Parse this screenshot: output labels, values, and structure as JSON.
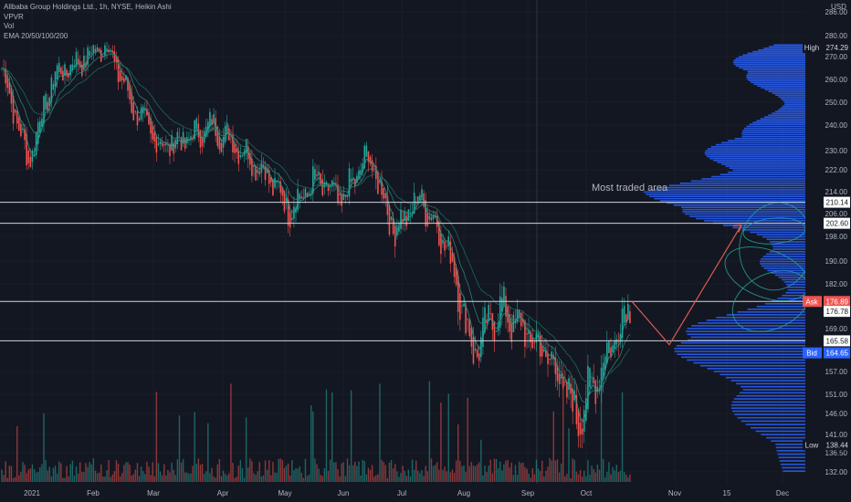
{
  "header": {
    "symbol_line": "Alibaba Group Holdings Ltd., 1h, NYSE, Heikin Ashi",
    "indicators": [
      "VPVR",
      "Vol",
      "EMA 20/50/100/200"
    ]
  },
  "colors": {
    "background": "#131722",
    "grid": "#2a2e39",
    "candle_up": "#26a69a",
    "candle_down": "#ef5350",
    "profile": "#2962ff",
    "level_line": "#d1d4dc",
    "projection": "#e05a4f",
    "ellipse": "#26a69a",
    "ask": "#ef5350",
    "bid": "#2962ff"
  },
  "chart_data": {
    "type": "candlestick",
    "price_unit": "USD",
    "y_axis_ticks": [
      286.0,
      280.0,
      270.0,
      260.0,
      250.0,
      240.0,
      230.0,
      222.0,
      214.0,
      206.0,
      198.0,
      190.0,
      182.0,
      169.0,
      157.0,
      151.0,
      146.0,
      141.0,
      136.5,
      132.0
    ],
    "x_axis_ticks": [
      "2021",
      "Feb",
      "Mar",
      "Apr",
      "May",
      "Jun",
      "Jul",
      "Aug",
      "Sep",
      "Oct",
      "Nov",
      "15",
      "Dec"
    ],
    "price_path": [
      [
        "2021",
        265
      ],
      [
        "Jan-mid",
        225
      ],
      [
        "Jan-end",
        262
      ],
      [
        "Feb-mid",
        268
      ],
      [
        "Feb-end",
        276
      ],
      [
        "Mar-early",
        248
      ],
      [
        "Mar-mid",
        232
      ],
      [
        "Apr",
        234
      ],
      [
        "Apr-mid",
        240
      ],
      [
        "Apr-end",
        232
      ],
      [
        "May",
        222
      ],
      [
        "May-mid",
        208
      ],
      [
        "Jun",
        218
      ],
      [
        "Jun-mid",
        210
      ],
      [
        "Jul",
        228
      ],
      [
        "Jul-mid",
        200
      ],
      [
        "Jul-end",
        212
      ],
      [
        "Aug",
        195
      ],
      [
        "Aug-mid",
        162
      ],
      [
        "Aug-end",
        175
      ],
      [
        "Sep",
        168
      ],
      [
        "Sep-mid",
        160
      ],
      [
        "Oct",
        145
      ],
      [
        "Oct-mid",
        160
      ],
      [
        "Oct-end",
        177
      ]
    ],
    "horizontal_levels": [
      210.14,
      202.6,
      176.89,
      165.58
    ],
    "price_tags": [
      {
        "label": "High",
        "value": "274.29"
      },
      {
        "label": "",
        "value": "210.14"
      },
      {
        "label": "",
        "value": "202.60"
      },
      {
        "label": "Ask",
        "value": "176.89"
      },
      {
        "label": "",
        "value": "176.78"
      },
      {
        "label": "",
        "value": "165.58"
      },
      {
        "label": "Bid",
        "value": "164.65"
      },
      {
        "label": "Low",
        "value": "138.44"
      }
    ],
    "annotation": "Most traded area",
    "projection_path": [
      [
        176.89,
        "Oct-end"
      ],
      [
        164.0,
        "Nov-early"
      ],
      [
        202.0,
        "Nov-end"
      ]
    ],
    "volume_profile_note": "VPVR histogram on right side, peak near 206-214 and 165-176"
  }
}
